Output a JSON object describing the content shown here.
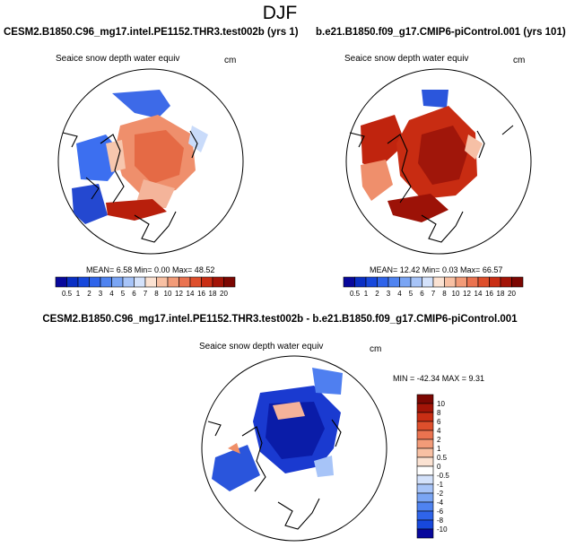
{
  "figure": {
    "season": "DJF",
    "variable": "Seaice snow depth water equiv",
    "units": "cm"
  },
  "panels": {
    "case_a": {
      "title": "CESM2.B1850.C96_mg17.intel.PE1152.THR3.test002b (yrs 1)",
      "stats": "MEAN=  6.58  Min=   0.00  Max=  48.52"
    },
    "case_b": {
      "title": "b.e21.B1850.f09_g17.CMIP6-piControl.001 (yrs 101)",
      "stats": "MEAN= 12.42  Min=   0.03  Max=  66.57"
    },
    "difference": {
      "title": "CESM2.B1850.C96_mg17.intel.PE1152.THR3.test002b - b.e21.B1850.f09_g17.CMIP6-piControl.001",
      "stats": "MIN = -42.34 MAX =   9.31"
    }
  },
  "colorbars": {
    "absolute": {
      "labels": [
        "0.5",
        "1",
        "2",
        "3",
        "4",
        "5",
        "6",
        "7",
        "8",
        "10",
        "12",
        "14",
        "16",
        "18",
        "20"
      ],
      "colors": [
        "#08089c",
        "#0a2fc4",
        "#1748dc",
        "#2f64ea",
        "#4f83f0",
        "#7aa5f4",
        "#a7c4f8",
        "#d4e2fb",
        "#fbe2d2",
        "#f8c0a3",
        "#f29b78",
        "#ea7350",
        "#de4f2c",
        "#c92e14",
        "#a31407",
        "#7c0702"
      ]
    },
    "difference": {
      "labels": [
        "10",
        "8",
        "6",
        "4",
        "2",
        "1",
        "0.5",
        "0",
        "-0.5",
        "-1",
        "-2",
        "-4",
        "-6",
        "-8",
        "-10"
      ],
      "colors": [
        "#7c0702",
        "#a31407",
        "#c92e14",
        "#de4f2c",
        "#ea7350",
        "#f29b78",
        "#f8c0a3",
        "#fbe2d2",
        "#ffffff",
        "#d4e2fb",
        "#a7c4f8",
        "#7aa5f4",
        "#4f83f0",
        "#2f64ea",
        "#1748dc",
        "#08089c"
      ]
    }
  }
}
